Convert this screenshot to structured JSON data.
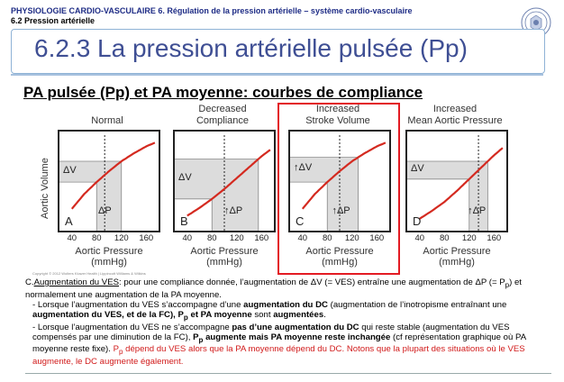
{
  "header": {
    "course": "PHYSIOLOGIE CARDIO-VASCULAIRE",
    "chapter": "6. Régulation de la pression artérielle – système cardio-vasculaire",
    "section": "6.2 Pression artérielle"
  },
  "title": "6.2.3 La pression artérielle pulsée (Pp)",
  "subtitle": "PA pulsée (Pp) et PA moyenne: courbes de compliance",
  "yaxis_label": "Aortic Volume",
  "xaxis_label_line1": "Aortic Pressure",
  "xaxis_label_line2": "(mmHg)",
  "delta_v": "ΔV",
  "delta_p": "ΔP",
  "up_delta_v": "↑ΔV",
  "up_delta_p": "↑ΔP",
  "panels": [
    {
      "title1": "",
      "title2": "Normal",
      "letter": "A"
    },
    {
      "title1": "Decreased",
      "title2": "Compliance",
      "letter": "B"
    },
    {
      "title1": "Increased",
      "title2": "Stroke Volume",
      "letter": "C"
    },
    {
      "title1": "Increased",
      "title2": "Mean Aortic Pressure",
      "letter": "D"
    }
  ],
  "x_ticks": [
    "40",
    "80",
    "120",
    "160"
  ],
  "copyright": "Copyright © 2012 Wolters Kluwer Health | Lippincott Williams & Wilkins",
  "chart_data": {
    "type": "line",
    "xlabel": "Aortic Pressure (mmHg)",
    "ylabel": "Aortic Volume",
    "xlim": [
      20,
      180
    ],
    "x_ticks": [
      40,
      80,
      120,
      160
    ],
    "grid": false,
    "series": [
      {
        "x": [
          40,
          60,
          80,
          100,
          120,
          140,
          160,
          175
        ],
        "values": [
          0.22,
          0.37,
          0.49,
          0.6,
          0.7,
          0.78,
          0.85,
          0.89
        ]
      },
      {
        "x": [
          40,
          60,
          80,
          100,
          120,
          140,
          160,
          175
        ],
        "values": [
          0.15,
          0.23,
          0.32,
          0.42,
          0.53,
          0.64,
          0.75,
          0.82
        ]
      },
      {
        "x": [
          40,
          60,
          80,
          100,
          120,
          140,
          160,
          175
        ],
        "values": [
          0.22,
          0.37,
          0.49,
          0.6,
          0.7,
          0.78,
          0.85,
          0.89
        ]
      },
      {
        "x": [
          40,
          60,
          80,
          100,
          120,
          140,
          160,
          175
        ],
        "values": [
          0.12,
          0.2,
          0.29,
          0.4,
          0.52,
          0.64,
          0.76,
          0.84
        ]
      }
    ],
    "pressure_ranges": [
      [
        80,
        120
      ],
      [
        80,
        155
      ],
      [
        80,
        130
      ],
      [
        120,
        150
      ]
    ],
    "mean_pressure": [
      93,
      100,
      100,
      135
    ]
  },
  "text": {
    "c_lead": "C.",
    "c_underline": "Augmentation du VES",
    "c_rest": ": pour une compliance donnée, l’augmentation de ΔV (= VES) entraîne une augmentation de ΔP (= P",
    "c_rest_sub": "p",
    "c_rest2": ") et normalement une augmentation de la PA moyenne.",
    "b1_a": "- Lorsque l’augmentation du VES s’accompagne d’une ",
    "b1_b": "augmentation du DC",
    "b1_c": " (augmentation de l’inotropisme entraînant une ",
    "b1_d": "augmentation du VES, et de la FC), P",
    "b1_e": "p",
    "b1_f": " et PA moyenne",
    "b1_g": " sont ",
    "b1_h": "augmentées",
    "b1_i": ".",
    "b2_a": "- Lorsque l’augmentation du VES ne s’accompagne ",
    "b2_b": "pas d’une augmentation du DC",
    "b2_c": " qui reste stable (augmentation du VES compensés par une diminution de la FC), ",
    "b2_d": "P",
    "b2_e": "p",
    "b2_f": " augmente mais PA moyenne reste inchangée",
    "b2_g": " (cf représentation graphique où PA moyenne reste fixe). ",
    "r_a": "P",
    "r_b": "p",
    "r_c": " dépend du VES alors que la PA moyenne dépend du DC. Notons que la plupart des situations où le VES augmente, le DC augmente également."
  },
  "colors": {
    "header": "#1f2d86",
    "title": "#3f4f94",
    "curve": "#d42a20",
    "shade": "#dcdcdc",
    "highlight": "#e31b23",
    "note": "#d11b1b"
  }
}
